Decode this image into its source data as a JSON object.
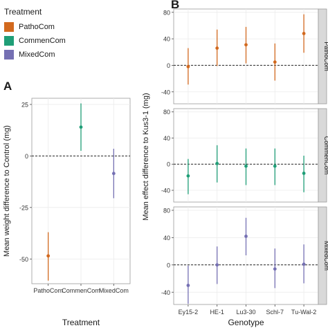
{
  "legend": {
    "title": "Treatment",
    "items": [
      {
        "label": "PathoCom",
        "color": "#d2691e"
      },
      {
        "label": "CommenCom",
        "color": "#1f9e77"
      },
      {
        "label": "MixedCom",
        "color": "#7570b3"
      }
    ]
  },
  "panels": {
    "a": "A",
    "b": "B"
  },
  "chart_data": [
    {
      "type": "scatter",
      "subtype": "point-errorbar",
      "panel": "A",
      "xlabel": "Treatment",
      "ylabel": "Mean weight difference to Control (mg)",
      "categories": [
        "PathoCom",
        "CommenCom",
        "MixedCom"
      ],
      "colors": [
        "#d2691e",
        "#1f9e77",
        "#7570b3"
      ],
      "values": [
        -48.5,
        14,
        -8.5
      ],
      "lower": [
        -60.5,
        2.5,
        -20.5
      ],
      "upper": [
        -37,
        25.5,
        3.5
      ],
      "ylim": [
        -62,
        28
      ],
      "yticks": [
        -50,
        -25,
        0,
        25
      ],
      "reference_line": 0,
      "grid": true
    },
    {
      "type": "scatter",
      "subtype": "point-errorbar-faceted",
      "panel": "B",
      "xlabel": "Genotype",
      "ylabel": "Mean effect difference to Kus3-1 (mg)",
      "categories": [
        "Ey15-2",
        "HE-1",
        "Lu3-30",
        "Schl-7",
        "Tu-Wal-2"
      ],
      "ylim": [
        -58,
        85
      ],
      "yticks": [
        -40,
        0,
        40,
        80
      ],
      "reference_line": 0,
      "grid": true,
      "series": [
        {
          "name": "PathoCom",
          "color": "#d2691e",
          "values": [
            -2,
            26,
            31,
            5,
            48
          ],
          "lower": [
            -29,
            -1,
            3,
            -23,
            19
          ],
          "upper": [
            26,
            54,
            58,
            33,
            77
          ]
        },
        {
          "name": "CommenCom",
          "color": "#1f9e77",
          "values": [
            -18,
            1,
            -3,
            -3,
            -14
          ],
          "lower": [
            -46,
            -28,
            -32,
            -32,
            -43
          ],
          "upper": [
            8,
            29,
            24,
            24,
            13
          ]
        },
        {
          "name": "MixedCom",
          "color": "#7570b3",
          "values": [
            -30,
            0,
            42,
            -6,
            1
          ],
          "lower": [
            -57,
            -28,
            14,
            -34,
            -27
          ],
          "upper": [
            -1,
            27,
            69,
            24,
            30
          ]
        }
      ]
    }
  ]
}
